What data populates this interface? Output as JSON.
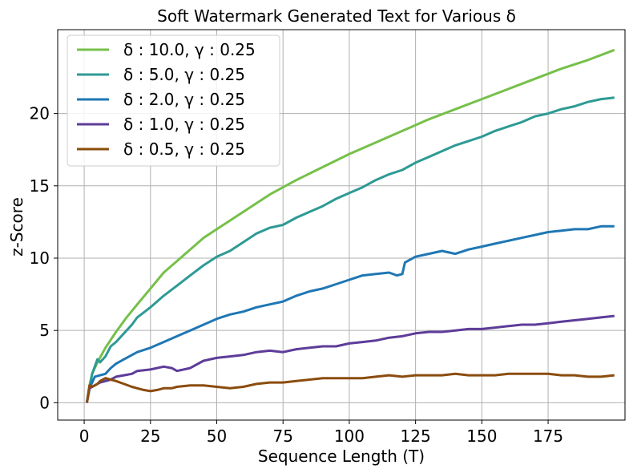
{
  "chart_data": {
    "type": "line",
    "title": "Soft Watermark Generated Text for Various δ",
    "xlabel": "Sequence Length (T)",
    "ylabel": "z-Score",
    "xlim": [
      -10,
      204
    ],
    "ylim": [
      -1.2,
      25.8
    ],
    "xticks": [
      0,
      25,
      50,
      75,
      100,
      125,
      150,
      175
    ],
    "yticks": [
      0,
      5,
      10,
      15,
      20
    ],
    "grid": true,
    "legend_position": "upper-left",
    "series": [
      {
        "name": "δ : 10.0, γ : 0.25",
        "color": "#76c04a",
        "x": [
          1,
          2,
          3,
          5,
          8,
          12,
          16,
          20,
          25,
          30,
          35,
          40,
          45,
          50,
          55,
          60,
          70,
          80,
          90,
          100,
          110,
          120,
          130,
          140,
          150,
          160,
          170,
          180,
          190,
          200
        ],
        "y": [
          0,
          1.2,
          2.0,
          2.8,
          3.8,
          4.9,
          5.9,
          6.8,
          7.9,
          9.0,
          9.8,
          10.6,
          11.4,
          12.0,
          12.6,
          13.2,
          14.4,
          15.4,
          16.3,
          17.2,
          18.0,
          18.8,
          19.6,
          20.3,
          21.0,
          21.7,
          22.4,
          23.1,
          23.7,
          24.4
        ]
      },
      {
        "name": "δ : 5.0, γ : 0.25",
        "color": "#2e9a94",
        "x": [
          1,
          2,
          3,
          5,
          6,
          8,
          10,
          12,
          15,
          18,
          20,
          25,
          30,
          35,
          40,
          45,
          50,
          55,
          60,
          65,
          70,
          75,
          80,
          85,
          90,
          95,
          100,
          105,
          110,
          115,
          120,
          125,
          130,
          135,
          140,
          145,
          150,
          155,
          160,
          165,
          170,
          175,
          180,
          185,
          190,
          195,
          200
        ],
        "y": [
          0,
          1.0,
          2.0,
          3.0,
          2.8,
          3.2,
          3.9,
          4.2,
          4.8,
          5.4,
          5.9,
          6.6,
          7.4,
          8.1,
          8.8,
          9.5,
          10.1,
          10.5,
          11.1,
          11.7,
          12.1,
          12.3,
          12.8,
          13.2,
          13.6,
          14.1,
          14.5,
          14.9,
          15.4,
          15.8,
          16.1,
          16.6,
          17.0,
          17.4,
          17.8,
          18.1,
          18.4,
          18.8,
          19.1,
          19.4,
          19.8,
          20.0,
          20.3,
          20.5,
          20.8,
          21.0,
          21.1
        ]
      },
      {
        "name": "δ : 2.0, γ : 0.25",
        "color": "#1f77b4",
        "x": [
          1,
          2,
          4,
          6,
          8,
          10,
          12,
          15,
          18,
          20,
          25,
          30,
          35,
          40,
          45,
          50,
          55,
          60,
          65,
          70,
          75,
          80,
          85,
          90,
          95,
          100,
          105,
          110,
          115,
          118,
          120,
          121,
          125,
          130,
          135,
          140,
          145,
          150,
          155,
          160,
          165,
          170,
          175,
          180,
          185,
          190,
          195,
          200
        ],
        "y": [
          0,
          1.0,
          1.8,
          1.9,
          2.0,
          2.4,
          2.7,
          3.0,
          3.3,
          3.5,
          3.8,
          4.2,
          4.6,
          5.0,
          5.4,
          5.8,
          6.1,
          6.3,
          6.6,
          6.8,
          7.0,
          7.4,
          7.7,
          7.9,
          8.2,
          8.5,
          8.8,
          8.9,
          9.0,
          8.8,
          8.9,
          9.7,
          10.1,
          10.3,
          10.5,
          10.3,
          10.6,
          10.8,
          11.0,
          11.2,
          11.4,
          11.6,
          11.8,
          11.9,
          12.0,
          12.0,
          12.2,
          12.2
        ]
      },
      {
        "name": "δ : 1.0, γ : 0.25",
        "color": "#5e3c99",
        "x": [
          1,
          2,
          4,
          6,
          8,
          10,
          12,
          15,
          18,
          20,
          25,
          30,
          33,
          35,
          40,
          45,
          50,
          55,
          60,
          65,
          70,
          75,
          80,
          85,
          90,
          95,
          100,
          105,
          110,
          115,
          120,
          125,
          130,
          135,
          140,
          145,
          150,
          155,
          160,
          165,
          170,
          175,
          180,
          185,
          190,
          195,
          200
        ],
        "y": [
          0,
          1.0,
          1.2,
          1.4,
          1.5,
          1.6,
          1.8,
          1.9,
          2.0,
          2.2,
          2.3,
          2.5,
          2.4,
          2.2,
          2.4,
          2.9,
          3.1,
          3.2,
          3.3,
          3.5,
          3.6,
          3.5,
          3.7,
          3.8,
          3.9,
          3.9,
          4.1,
          4.2,
          4.3,
          4.5,
          4.6,
          4.8,
          4.9,
          4.9,
          5.0,
          5.1,
          5.1,
          5.2,
          5.3,
          5.4,
          5.4,
          5.5,
          5.6,
          5.7,
          5.8,
          5.9,
          6.0
        ]
      },
      {
        "name": "δ : 0.5, γ : 0.25",
        "color": "#8b4c0e",
        "x": [
          1,
          2,
          3,
          5,
          6,
          8,
          10,
          12,
          15,
          18,
          20,
          22,
          25,
          28,
          30,
          33,
          35,
          40,
          45,
          50,
          55,
          60,
          65,
          70,
          75,
          80,
          85,
          90,
          95,
          100,
          105,
          110,
          115,
          120,
          125,
          130,
          135,
          140,
          145,
          150,
          155,
          160,
          165,
          170,
          175,
          180,
          185,
          190,
          195,
          200
        ],
        "y": [
          0,
          1.2,
          1.1,
          1.3,
          1.5,
          1.7,
          1.6,
          1.5,
          1.3,
          1.1,
          1.0,
          0.9,
          0.8,
          0.9,
          1.0,
          1.0,
          1.1,
          1.2,
          1.2,
          1.1,
          1.0,
          1.1,
          1.3,
          1.4,
          1.4,
          1.5,
          1.6,
          1.7,
          1.7,
          1.7,
          1.7,
          1.8,
          1.9,
          1.8,
          1.9,
          1.9,
          1.9,
          2.0,
          1.9,
          1.9,
          1.9,
          2.0,
          2.0,
          2.0,
          2.0,
          1.9,
          1.9,
          1.8,
          1.8,
          1.9
        ]
      }
    ]
  }
}
